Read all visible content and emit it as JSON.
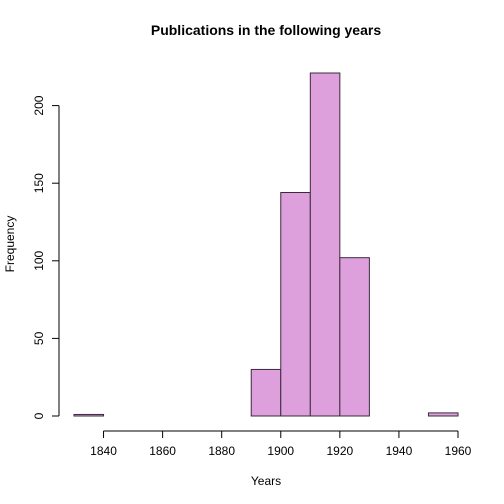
{
  "chart_data": {
    "type": "bar",
    "title": "Publications in the following years",
    "xlabel": "Years",
    "ylabel": "Frequency",
    "bar_color": "#DDA0DD",
    "bar_border_color": "#3B2A3A",
    "bins": [
      {
        "start": 1830,
        "end": 1840,
        "count": 1
      },
      {
        "start": 1840,
        "end": 1850,
        "count": 0
      },
      {
        "start": 1850,
        "end": 1860,
        "count": 0
      },
      {
        "start": 1860,
        "end": 1870,
        "count": 0
      },
      {
        "start": 1870,
        "end": 1880,
        "count": 0
      },
      {
        "start": 1880,
        "end": 1890,
        "count": 0
      },
      {
        "start": 1890,
        "end": 1900,
        "count": 30
      },
      {
        "start": 1900,
        "end": 1910,
        "count": 144
      },
      {
        "start": 1910,
        "end": 1920,
        "count": 221
      },
      {
        "start": 1920,
        "end": 1930,
        "count": 102
      },
      {
        "start": 1930,
        "end": 1940,
        "count": 0
      },
      {
        "start": 1940,
        "end": 1950,
        "count": 0
      },
      {
        "start": 1950,
        "end": 1960,
        "count": 2
      }
    ],
    "x_ticks": [
      "1840",
      "1860",
      "1880",
      "1900",
      "1920",
      "1940",
      "1960"
    ],
    "y_ticks": [
      "0",
      "50",
      "100",
      "150",
      "200"
    ],
    "xlim": [
      1830,
      1960
    ],
    "ylim": [
      0,
      221
    ],
    "grid": false,
    "legend": "none"
  }
}
